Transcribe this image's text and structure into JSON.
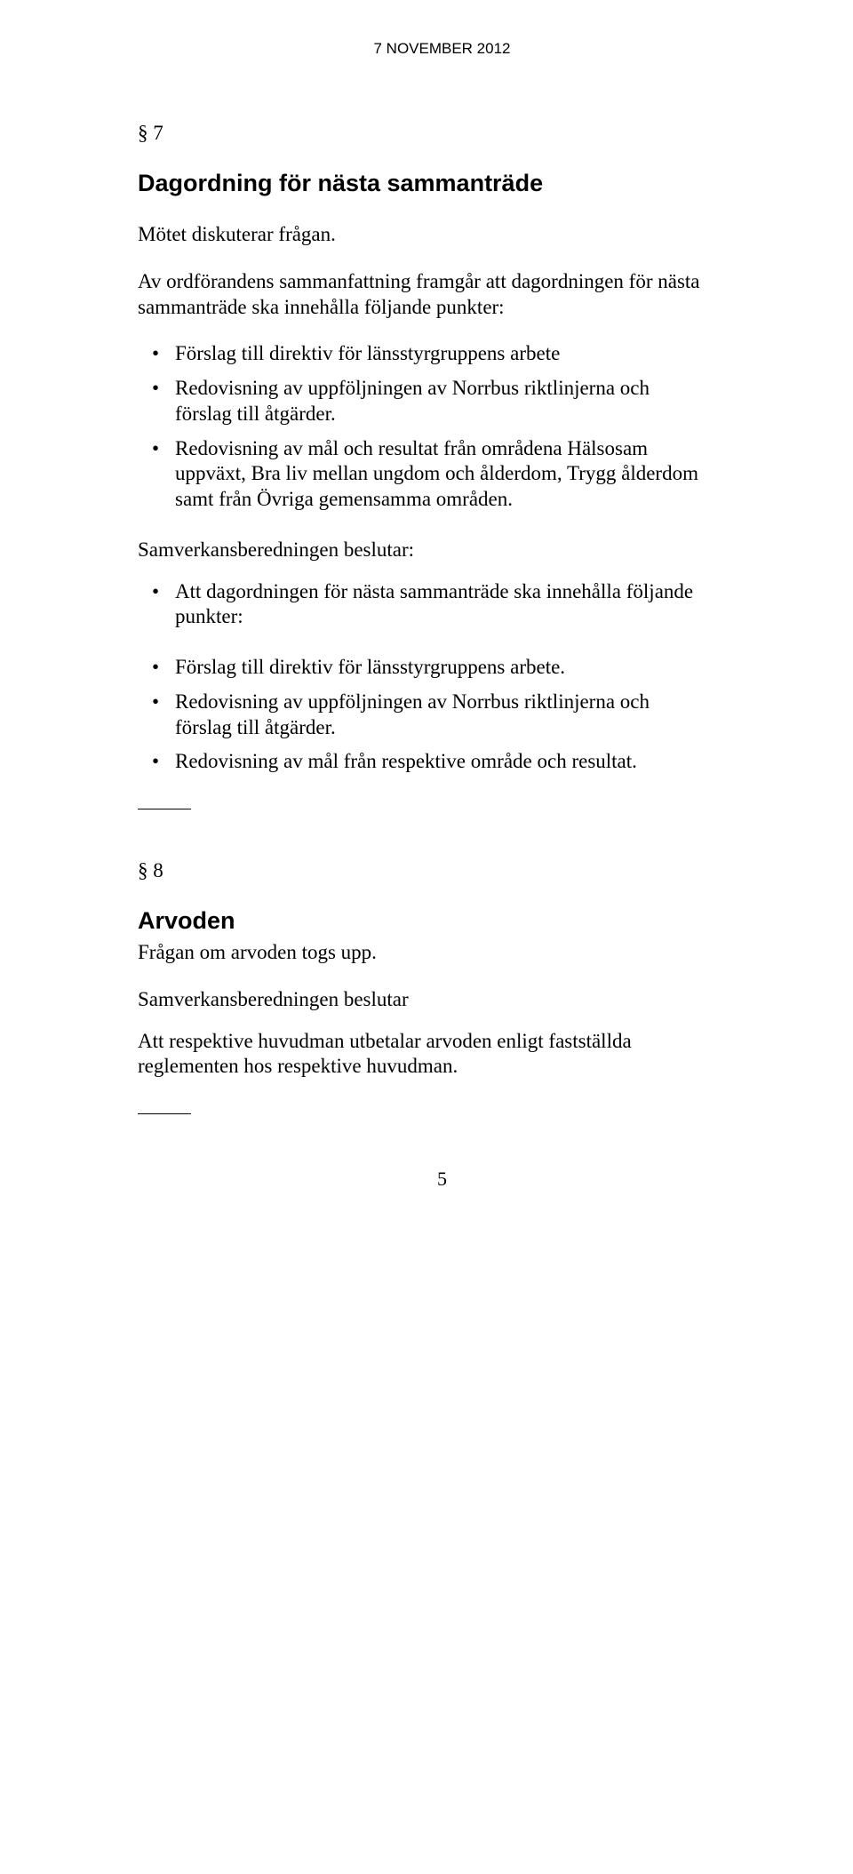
{
  "header": {
    "date": "7 NOVEMBER 2012"
  },
  "section7": {
    "num": "§ 7",
    "heading": "Dagordning för nästa sammanträde",
    "p1": "Mötet diskuterar frågan.",
    "p2": "Av ordförandens sammanfattning framgår att dagordningen för nästa sammanträde ska innehålla följande punkter:",
    "list1": {
      "i0": "Förslag till direktiv för länsstyrgruppens arbete",
      "i1": "Redovisning av uppföljningen av Norrbus riktlinjerna och förslag till åtgärder.",
      "i2": "Redovisning av mål och resultat från områdena Hälsosam uppväxt, Bra liv mellan ungdom och ålderdom, Trygg ålderdom samt från Övriga gemensamma områden."
    },
    "p3": "Samverkansberedningen beslutar:",
    "list2": {
      "i0": "Att dagordningen för nästa sammanträde ska innehålla följande punkter:"
    },
    "list3": {
      "i0": "Förslag till direktiv för länsstyrgruppens arbete.",
      "i1": "Redovisning av uppföljningen av Norrbus riktlinjerna och förslag till åtgärder.",
      "i2": "Redovisning av mål från respektive område och resultat."
    }
  },
  "section8": {
    "num": "§ 8",
    "heading": "Arvoden",
    "p1": "Frågan om arvoden togs upp.",
    "p2": "Samverkansberedningen beslutar",
    "p3": "Att respektive huvudman utbetalar arvoden enligt fastställda reglementen hos respektive huvudman."
  },
  "footer": {
    "page": "5"
  }
}
